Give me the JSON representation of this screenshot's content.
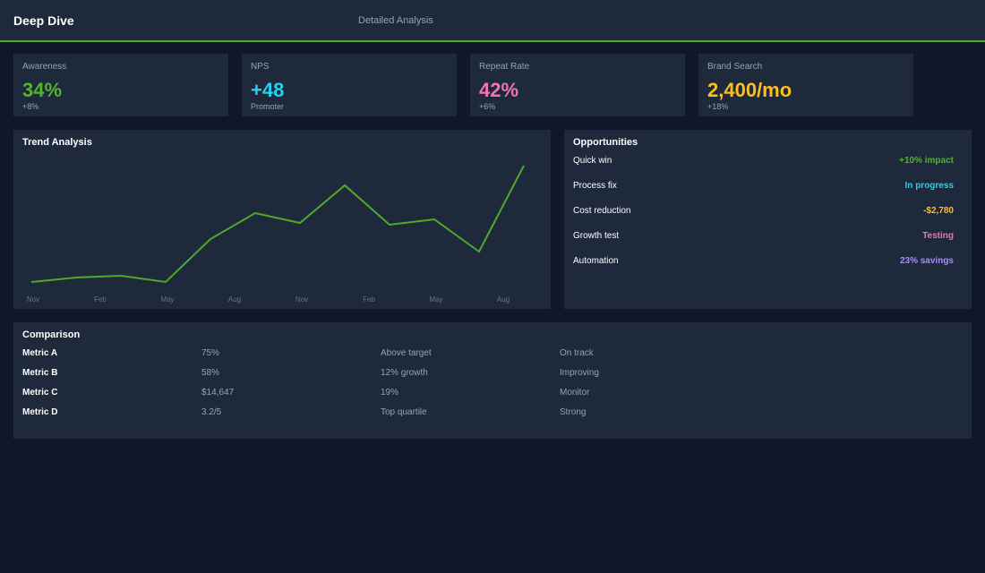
{
  "header": {
    "title": "Deep Dive",
    "subtitle": "Detailed Analysis"
  },
  "kpis": [
    {
      "label": "Awareness",
      "value": "34%",
      "note": "+8%",
      "color": "#52b52a"
    },
    {
      "label": "NPS",
      "value": "+48",
      "note": "Promoter",
      "color": "#22d3ee"
    },
    {
      "label": "Repeat Rate",
      "value": "42%",
      "note": "+6%",
      "color": "#f472b6"
    },
    {
      "label": "Brand Search",
      "value": "2,400/mo",
      "note": "+18%",
      "color": "#fbbf24"
    }
  ],
  "chart_data": {
    "type": "line",
    "title": "Trend Analysis",
    "xticks": [
      "Nov",
      "Feb",
      "May",
      "Aug",
      "Nov",
      "Feb",
      "May",
      "Aug"
    ],
    "values": [
      15,
      20,
      22,
      15,
      63,
      92,
      81,
      123,
      79,
      85,
      49,
      145
    ],
    "color": "#52a82a",
    "ylim": [
      0,
      160
    ]
  },
  "opportunities": {
    "title": "Opportunities",
    "items": [
      {
        "name": "Quick win",
        "value": "+10% impact",
        "color": "#52b52a"
      },
      {
        "name": "Process fix",
        "value": "In progress",
        "color": "#22d3ee"
      },
      {
        "name": "Cost reduction",
        "value": "-$2,780",
        "color": "#fbbf24"
      },
      {
        "name": "Growth test",
        "value": "Testing",
        "color": "#f472b6"
      },
      {
        "name": "Automation",
        "value": "23% savings",
        "color": "#a78bfa"
      }
    ]
  },
  "comparison": {
    "title": "Comparison",
    "rows": [
      [
        "Metric A",
        "75%",
        "Above target",
        "On track"
      ],
      [
        "Metric B",
        "58%",
        "12% growth",
        "Improving"
      ],
      [
        "Metric C",
        "$14,647",
        "19%",
        "Monitor"
      ],
      [
        "Metric D",
        "3.2/5",
        "Top quartile",
        "Strong"
      ]
    ]
  }
}
